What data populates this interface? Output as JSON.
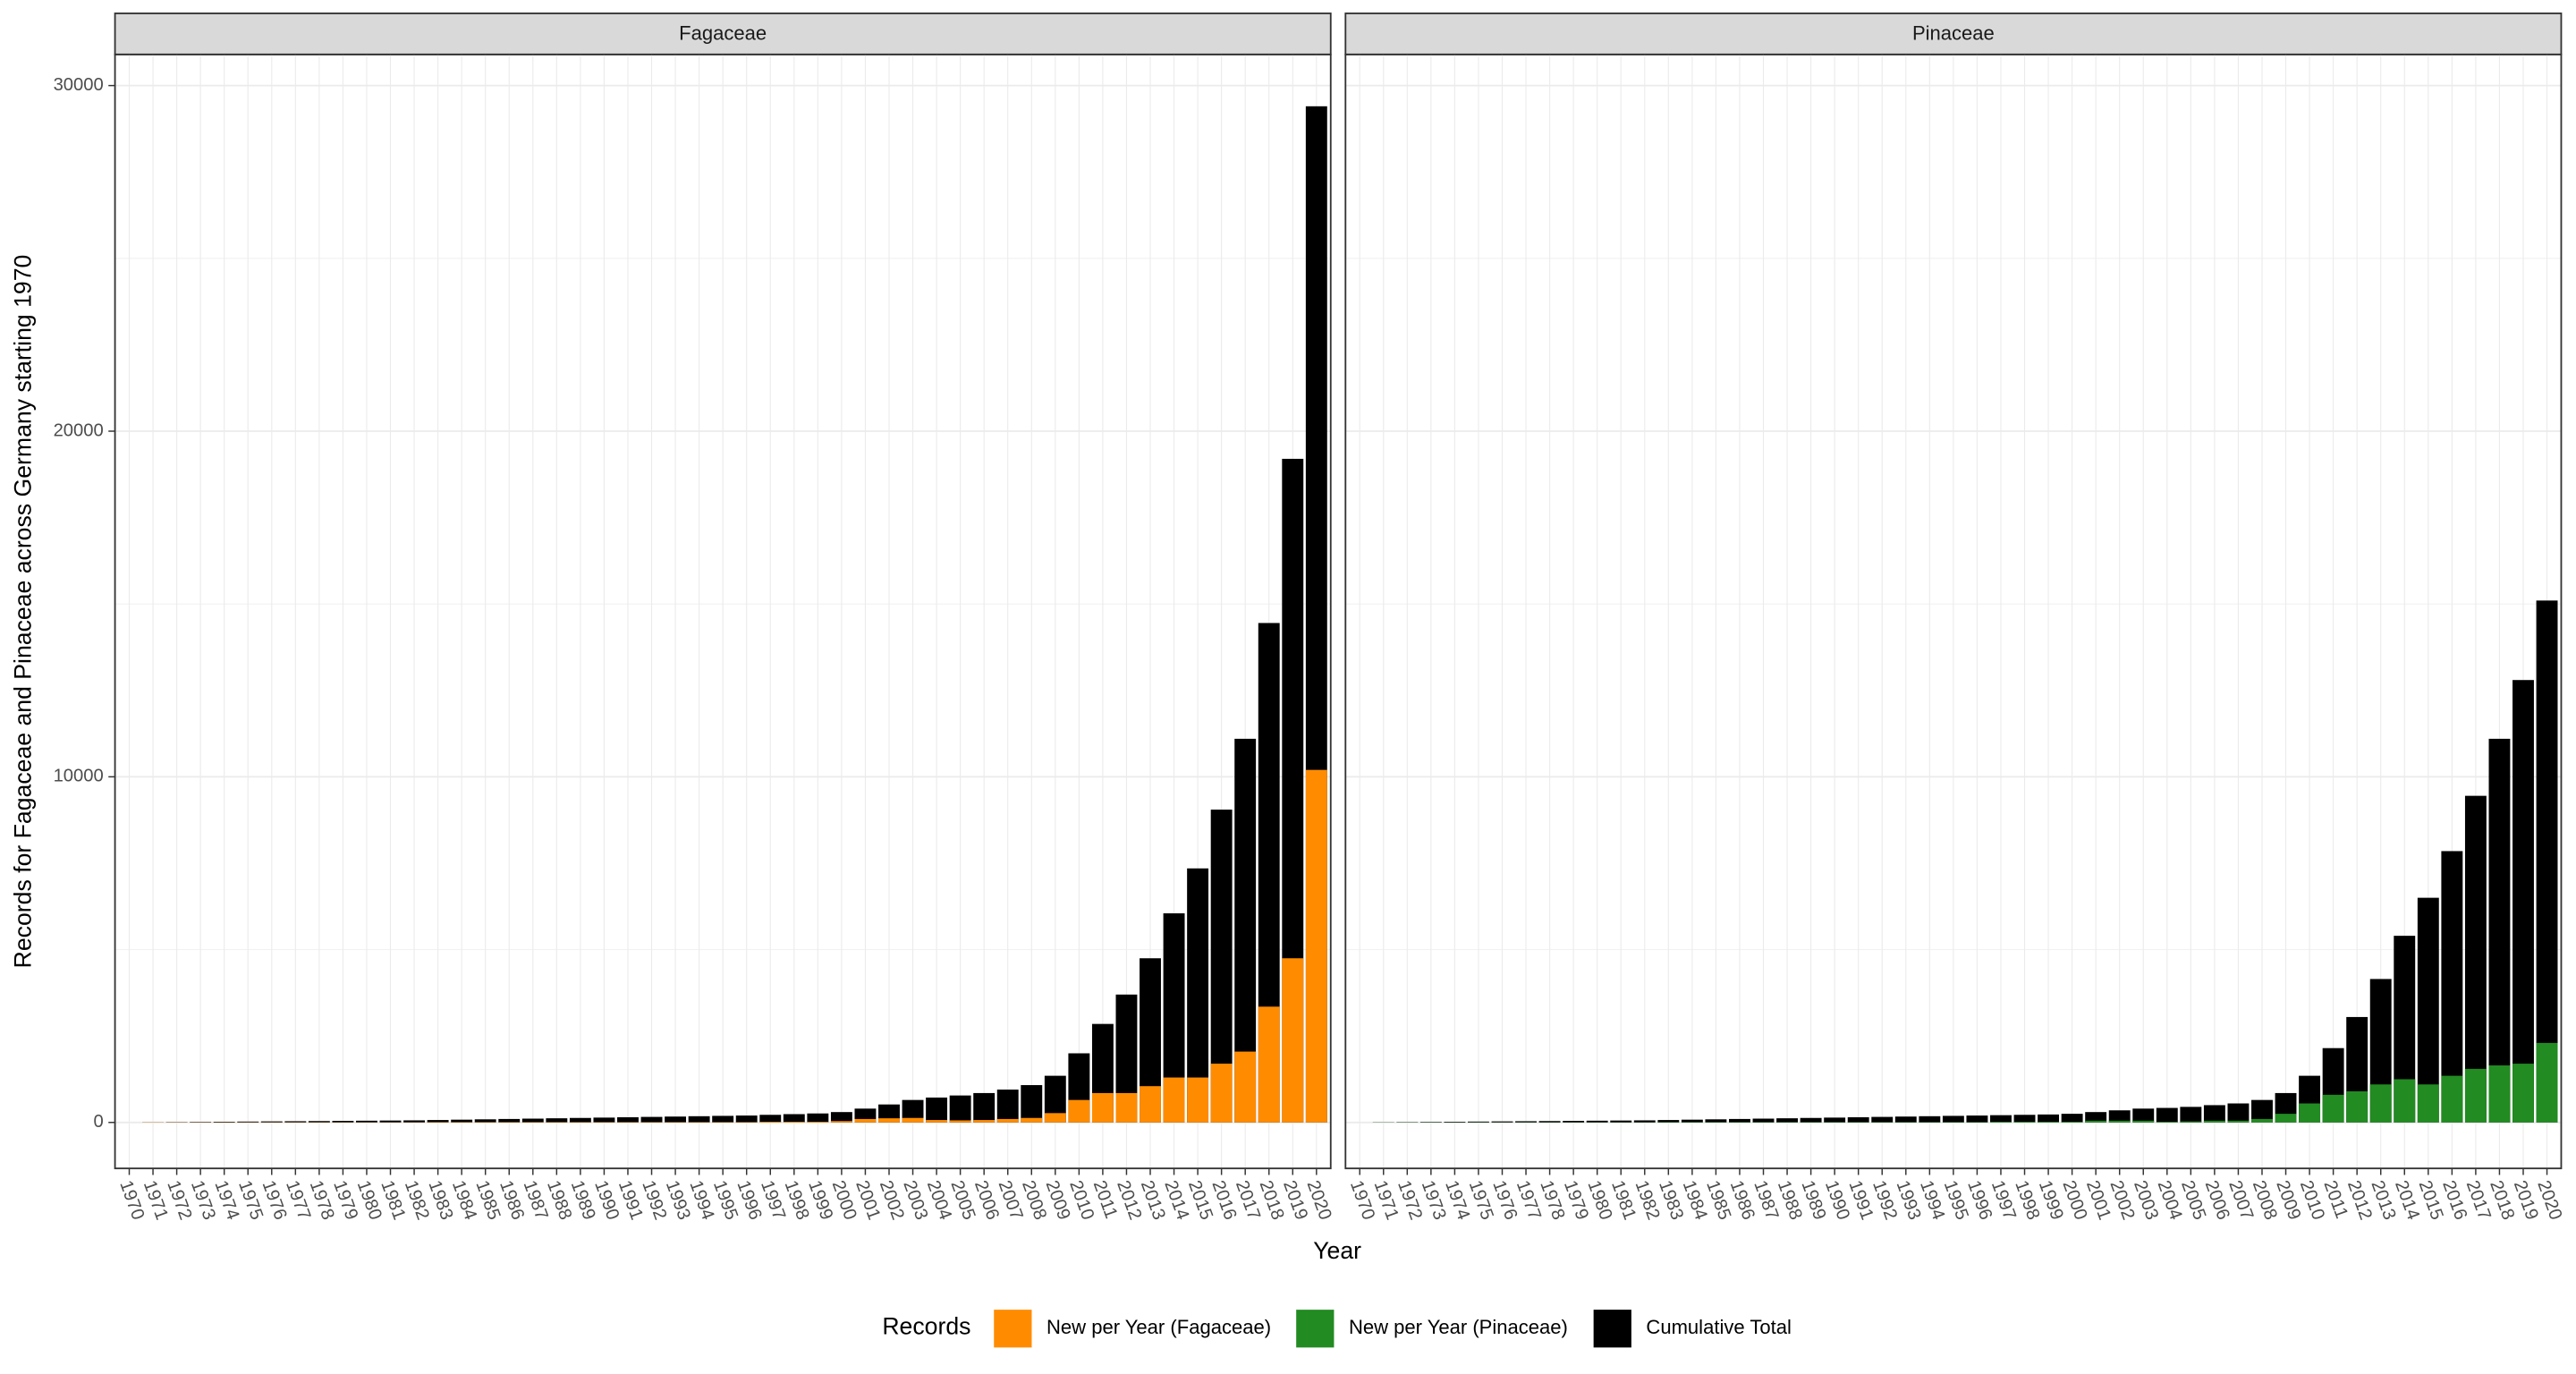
{
  "x_label": "Year",
  "y_label": "Records for Fagaceae and Pinaceae across Germany starting 1970",
  "legend_title": "Records",
  "chart_data": [
    {
      "type": "bar",
      "title": "Fagaceae",
      "categories": [
        "1970",
        "1971",
        "1972",
        "1973",
        "1974",
        "1975",
        "1976",
        "1977",
        "1978",
        "1979",
        "1980",
        "1981",
        "1982",
        "1983",
        "1984",
        "1985",
        "1986",
        "1987",
        "1988",
        "1989",
        "1990",
        "1991",
        "1992",
        "1993",
        "1994",
        "1995",
        "1996",
        "1997",
        "1998",
        "1999",
        "2000",
        "2001",
        "2002",
        "2003",
        "2004",
        "2005",
        "2006",
        "2007",
        "2008",
        "2009",
        "2010",
        "2011",
        "2012",
        "2013",
        "2014",
        "2015",
        "2016",
        "2017",
        "2018",
        "2019",
        "2020"
      ],
      "series": [
        {
          "name": "Cumulative Total",
          "color": "#000000",
          "values": [
            0,
            5,
            10,
            15,
            20,
            25,
            30,
            35,
            40,
            45,
            50,
            55,
            60,
            70,
            80,
            90,
            100,
            110,
            120,
            130,
            140,
            150,
            160,
            170,
            180,
            190,
            200,
            220,
            240,
            260,
            300,
            400,
            520,
            650,
            720,
            780,
            850,
            950,
            1080,
            1350,
            2000,
            2850,
            3700,
            4750,
            6050,
            7350,
            9050,
            11100,
            14450,
            19200,
            29400
          ]
        },
        {
          "name": "New per Year (Fagaceae)",
          "color": "#ff8c00",
          "values": [
            0,
            5,
            5,
            5,
            5,
            5,
            5,
            5,
            5,
            5,
            5,
            5,
            5,
            10,
            10,
            10,
            10,
            10,
            10,
            10,
            10,
            10,
            10,
            10,
            10,
            10,
            10,
            20,
            20,
            20,
            40,
            100,
            120,
            130,
            70,
            60,
            70,
            100,
            130,
            270,
            650,
            850,
            850,
            1050,
            1300,
            1300,
            1700,
            2050,
            3350,
            4750,
            10200
          ]
        }
      ],
      "ylim": [
        -1330,
        30900
      ],
      "yticks": [
        0,
        10000,
        20000,
        30000
      ],
      "grid": true
    },
    {
      "type": "bar",
      "title": "Pinaceae",
      "categories": [
        "1970",
        "1971",
        "1972",
        "1973",
        "1974",
        "1975",
        "1976",
        "1977",
        "1978",
        "1979",
        "1980",
        "1981",
        "1982",
        "1983",
        "1984",
        "1985",
        "1986",
        "1987",
        "1988",
        "1989",
        "1990",
        "1991",
        "1992",
        "1993",
        "1994",
        "1995",
        "1996",
        "1997",
        "1998",
        "1999",
        "2000",
        "2001",
        "2002",
        "2003",
        "2004",
        "2005",
        "2006",
        "2007",
        "2008",
        "2009",
        "2010",
        "2011",
        "2012",
        "2013",
        "2014",
        "2015",
        "2016",
        "2017",
        "2018",
        "2019",
        "2020"
      ],
      "series": [
        {
          "color": "#000000",
          "values": [
            0,
            5,
            10,
            15,
            20,
            25,
            30,
            35,
            40,
            45,
            50,
            55,
            60,
            70,
            80,
            90,
            100,
            110,
            120,
            130,
            140,
            150,
            160,
            170,
            180,
            190,
            200,
            210,
            220,
            230,
            250,
            300,
            350,
            400,
            420,
            450,
            500,
            550,
            650,
            850,
            1350,
            2150,
            3050,
            4150,
            5400,
            6500,
            7850,
            9450,
            11100,
            12800,
            15100
          ]
        },
        {
          "name": "New per Year (Pinaceae)",
          "color": "#228b22",
          "values": [
            0,
            5,
            5,
            5,
            5,
            5,
            5,
            5,
            5,
            5,
            5,
            5,
            5,
            10,
            10,
            10,
            10,
            10,
            10,
            10,
            10,
            10,
            10,
            10,
            10,
            10,
            10,
            20,
            20,
            20,
            20,
            50,
            50,
            50,
            20,
            30,
            50,
            50,
            100,
            250,
            550,
            800,
            900,
            1100,
            1250,
            1100,
            1350,
            1550,
            1650,
            1700,
            2300
          ]
        }
      ],
      "ylim": [
        -1330,
        30900
      ],
      "yticks": [
        0,
        10000,
        20000,
        30000
      ],
      "grid": true
    }
  ]
}
